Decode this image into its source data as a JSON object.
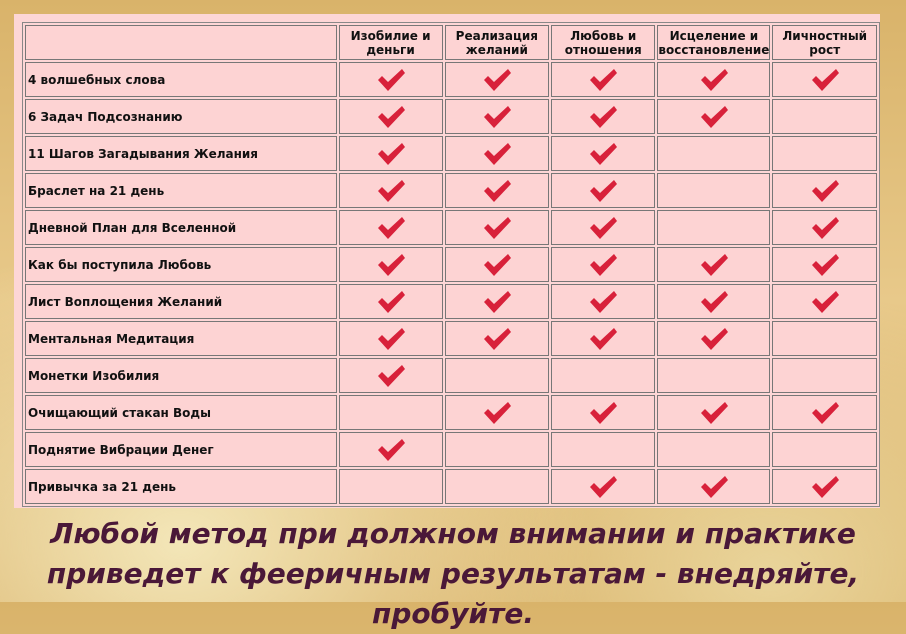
{
  "table": {
    "columns": [
      "Изобилие и деньги",
      "Реализация желаний",
      "Любовь и отношения",
      "Исцеление и восстановление",
      "Личностный рост"
    ],
    "rows": [
      {
        "name": "4 волшебных слова",
        "checks": [
          true,
          true,
          true,
          true,
          true
        ]
      },
      {
        "name": "6 Задач Подсознанию",
        "checks": [
          true,
          true,
          true,
          true,
          false
        ]
      },
      {
        "name": "11 Шагов Загадывания Желания",
        "checks": [
          true,
          true,
          true,
          false,
          false
        ]
      },
      {
        "name": "Браслет на 21 день",
        "checks": [
          true,
          true,
          true,
          false,
          true
        ]
      },
      {
        "name": "Дневной План для Вселенной",
        "checks": [
          true,
          true,
          true,
          false,
          true
        ]
      },
      {
        "name": "Как бы поступила Любовь",
        "checks": [
          true,
          true,
          true,
          true,
          true
        ]
      },
      {
        "name": "Лист Воплощения Желаний",
        "checks": [
          true,
          true,
          true,
          true,
          true
        ]
      },
      {
        "name": "Ментальная Медитация",
        "checks": [
          true,
          true,
          true,
          true,
          false
        ]
      },
      {
        "name": "Монетки Изобилия",
        "checks": [
          true,
          false,
          false,
          false,
          false
        ]
      },
      {
        "name": "Очищающий стакан Воды",
        "checks": [
          false,
          true,
          true,
          true,
          true
        ]
      },
      {
        "name": "Поднятие Вибрации Денег",
        "checks": [
          true,
          false,
          false,
          false,
          false
        ]
      },
      {
        "name": "Привычка за 21 день",
        "checks": [
          false,
          false,
          true,
          true,
          true
        ]
      }
    ]
  },
  "caption": "Любой метод при должном внимании и практике приведет к фееричным результатам - внедряйте, пробуйте."
}
